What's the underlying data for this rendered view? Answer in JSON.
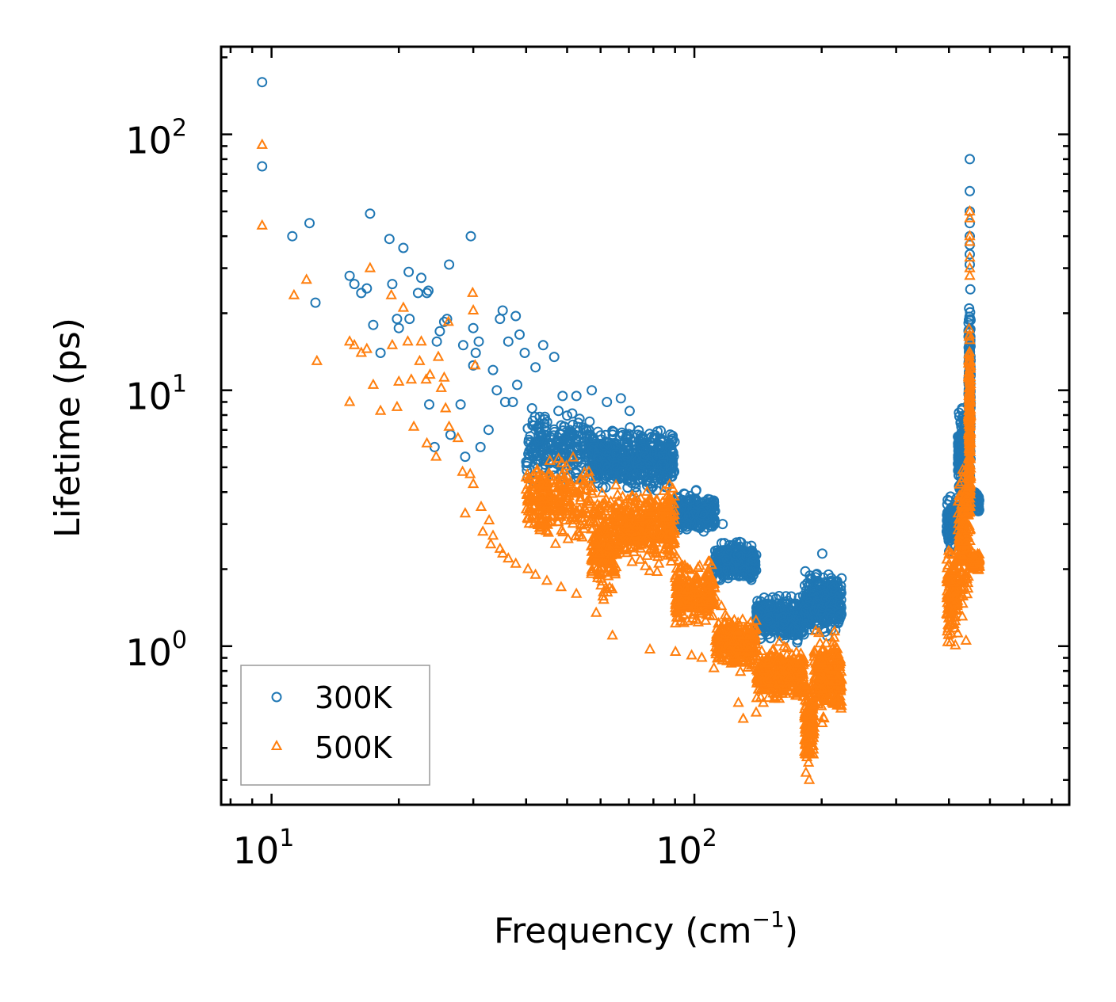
{
  "chart_data": {
    "type": "scatter",
    "title": "",
    "xlabel": "Frequency (cm",
    "xlabel_sup": "−1",
    "xlabel_end": ")",
    "ylabel": "Lifetime (ps)",
    "xscale": "log",
    "yscale": "log",
    "xlim": [
      7.6,
      770
    ],
    "ylim": [
      0.24,
      220
    ],
    "x_ticks": [
      {
        "value": 10,
        "base": "10",
        "exp": "1"
      },
      {
        "value": 100,
        "base": "10",
        "exp": "2"
      }
    ],
    "y_ticks": [
      {
        "value": 1,
        "base": "10",
        "exp": "0"
      },
      {
        "value": 10,
        "base": "10",
        "exp": "1"
      },
      {
        "value": 100,
        "base": "10",
        "exp": "2"
      }
    ],
    "legend_position": "lower-left",
    "series": [
      {
        "name": "300K",
        "marker": "circle",
        "color": "#1f77b4",
        "points": [
          [
            9.5,
            160
          ],
          [
            9.5,
            75
          ],
          [
            11.2,
            40
          ],
          [
            12.3,
            45
          ],
          [
            12.7,
            22
          ],
          [
            15.3,
            28
          ],
          [
            15.7,
            26
          ],
          [
            16.3,
            24
          ],
          [
            16.8,
            25
          ],
          [
            17.1,
            49
          ],
          [
            17.4,
            18
          ],
          [
            18.1,
            14
          ],
          [
            19.0,
            39
          ],
          [
            19.3,
            26
          ],
          [
            19.8,
            19
          ],
          [
            20.0,
            17.5
          ],
          [
            20.5,
            36
          ],
          [
            21.1,
            29
          ],
          [
            21.2,
            19
          ],
          [
            22.2,
            24
          ],
          [
            22.6,
            27.5
          ],
          [
            23.3,
            24
          ],
          [
            23.5,
            24.5
          ],
          [
            23.6,
            8.8
          ],
          [
            24.3,
            6
          ],
          [
            24.6,
            15.5
          ],
          [
            25.0,
            17
          ],
          [
            25.6,
            18.5
          ],
          [
            26.0,
            19
          ],
          [
            26.3,
            31
          ],
          [
            26.5,
            6.7
          ],
          [
            28.0,
            8.8
          ],
          [
            28.4,
            15
          ],
          [
            28.7,
            5.5
          ],
          [
            29.6,
            40
          ],
          [
            30.0,
            17.5
          ],
          [
            30.0,
            12.5
          ],
          [
            30.4,
            14
          ],
          [
            30.9,
            15.5
          ],
          [
            31.2,
            6
          ],
          [
            32.6,
            7
          ],
          [
            33.4,
            12
          ],
          [
            34.1,
            10
          ],
          [
            34.7,
            19
          ],
          [
            35.2,
            20.5
          ],
          [
            35.7,
            9
          ],
          [
            36.3,
            15.5
          ],
          [
            37.2,
            9
          ],
          [
            37.8,
            19.5
          ],
          [
            38.1,
            10.5
          ],
          [
            38.6,
            16.5
          ],
          [
            39.7,
            14
          ],
          [
            41.3,
            8.5
          ],
          [
            42.1,
            12.3
          ],
          [
            43.9,
            15
          ],
          [
            46.6,
            13.5
          ],
          [
            48.8,
            9.5
          ],
          [
            52.6,
            9.5
          ],
          [
            57.2,
            10
          ],
          [
            62.1,
            9
          ],
          [
            67.0,
            9.3
          ],
          [
            70.3,
            8.3
          ],
          [
            104.6,
            3.3
          ],
          [
            111.7,
            3.0
          ],
          [
            116.6,
            3.0
          ],
          [
            200.6,
            2.3
          ],
          [
            213.7,
            1.7
          ],
          [
            448,
            80
          ],
          [
            448,
            60
          ],
          [
            448,
            50
          ],
          [
            448,
            45
          ],
          [
            448,
            40
          ],
          [
            448,
            37
          ],
          [
            448,
            34
          ],
          [
            448,
            31
          ]
        ],
        "dense_regions": [
          {
            "x_range": [
              40,
              57
            ],
            "band": [
              4.0,
              9.0
            ],
            "count": 220
          },
          {
            "x_range": [
              57,
              90
            ],
            "band": [
              3.8,
              7.5
            ],
            "count": 520
          },
          {
            "x_range": [
              90,
              112
            ],
            "band": [
              2.6,
              4.2
            ],
            "count": 220
          },
          {
            "x_range": [
              112,
              140
            ],
            "band": [
              1.7,
              2.7
            ],
            "count": 260
          },
          {
            "x_range": [
              140,
              182
            ],
            "band": [
              1.0,
              1.65
            ],
            "count": 380
          },
          {
            "x_range": [
              182,
              223
            ],
            "band": [
              1.05,
              2.1
            ],
            "count": 300
          },
          {
            "x_range": [
              395,
              420
            ],
            "band": [
              2.2,
              4.0
            ],
            "count": 140
          },
          {
            "x_range": [
              420,
              445
            ],
            "band": [
              3.0,
              10.0
            ],
            "count": 160
          },
          {
            "x_range": [
              445,
              450
            ],
            "band": [
              4.0,
              30.0
            ],
            "count": 180
          },
          {
            "x_range": [
              450,
              472
            ],
            "band": [
              3.2,
              4.2
            ],
            "count": 110
          }
        ]
      },
      {
        "name": "500K",
        "marker": "triangle",
        "color": "#ff7f0e",
        "points": [
          [
            9.5,
            91
          ],
          [
            9.5,
            44
          ],
          [
            11.3,
            23.5
          ],
          [
            12.1,
            27
          ],
          [
            12.8,
            13
          ],
          [
            15.3,
            9
          ],
          [
            15.3,
            15.5
          ],
          [
            15.7,
            15
          ],
          [
            16.3,
            14
          ],
          [
            16.8,
            14.5
          ],
          [
            17.1,
            30
          ],
          [
            17.4,
            10.5
          ],
          [
            18.1,
            8.3
          ],
          [
            19.2,
            23.5
          ],
          [
            19.3,
            15
          ],
          [
            19.8,
            8.6
          ],
          [
            20.0,
            10.8
          ],
          [
            20.5,
            21
          ],
          [
            21.0,
            15.5
          ],
          [
            21.4,
            11
          ],
          [
            21.7,
            7.2
          ],
          [
            22.4,
            13
          ],
          [
            22.6,
            15.5
          ],
          [
            23.2,
            11
          ],
          [
            23.3,
            6.2
          ],
          [
            23.7,
            11.5
          ],
          [
            24.5,
            5.5
          ],
          [
            24.8,
            13.5
          ],
          [
            25.2,
            10.2
          ],
          [
            25.6,
            11.2
          ],
          [
            25.8,
            8.5
          ],
          [
            26.2,
            18.5
          ],
          [
            26.3,
            7.2
          ],
          [
            27.6,
            6.5
          ],
          [
            28.3,
            4.8
          ],
          [
            28.7,
            3.3
          ],
          [
            29.5,
            4.7
          ],
          [
            29.9,
            24
          ],
          [
            30.0,
            20.5
          ],
          [
            30.0,
            4.3
          ],
          [
            30.3,
            12.5
          ],
          [
            31.3,
            3.5
          ],
          [
            31.6,
            2.8
          ],
          [
            32.7,
            3.1
          ],
          [
            33.0,
            2.5
          ],
          [
            33.4,
            2.7
          ],
          [
            34.7,
            2.4
          ],
          [
            35.2,
            2.3
          ],
          [
            36.3,
            2.2
          ],
          [
            37.8,
            2.1
          ],
          [
            40.4,
            2.0
          ],
          [
            42.1,
            1.9
          ],
          [
            44.8,
            1.8
          ],
          [
            48.4,
            1.7
          ],
          [
            52.6,
            1.6
          ],
          [
            58.6,
            1.35
          ],
          [
            64.0,
            1.1
          ],
          [
            78.5,
            0.97
          ],
          [
            90.2,
            0.95
          ],
          [
            98.5,
            0.92
          ],
          [
            104.1,
            0.9
          ],
          [
            111.2,
            0.82
          ],
          [
            127.1,
            0.6
          ],
          [
            130.5,
            0.52
          ],
          [
            140.0,
            0.55
          ],
          [
            145.5,
            0.6
          ],
          [
            183.6,
            0.32
          ],
          [
            186.9,
            0.3
          ],
          [
            200.6,
            0.5
          ],
          [
            448,
            50
          ],
          [
            448,
            47
          ],
          [
            448,
            40
          ],
          [
            448,
            38
          ],
          [
            448,
            33
          ],
          [
            448,
            30
          ],
          [
            448,
            28
          ],
          [
            439,
            1.05
          ]
        ],
        "dense_regions": [
          {
            "x_range": [
              40,
              57
            ],
            "band": [
              2.3,
              5.8
            ],
            "count": 260
          },
          {
            "x_range": [
              57,
              65
            ],
            "band": [
              1.4,
              4.5
            ],
            "count": 200
          },
          {
            "x_range": [
              65,
              90
            ],
            "band": [
              1.9,
              4.5
            ],
            "count": 360
          },
          {
            "x_range": [
              90,
              112
            ],
            "band": [
              1.1,
              2.3
            ],
            "count": 240
          },
          {
            "x_range": [
              112,
              140
            ],
            "band": [
              0.75,
              1.45
            ],
            "count": 260
          },
          {
            "x_range": [
              140,
              182
            ],
            "band": [
              0.58,
              1.05
            ],
            "count": 340
          },
          {
            "x_range": [
              182,
              192
            ],
            "band": [
              0.32,
              0.8
            ],
            "count": 140
          },
          {
            "x_range": [
              192,
              223
            ],
            "band": [
              0.48,
              1.2
            ],
            "count": 260
          },
          {
            "x_range": [
              395,
              420
            ],
            "band": [
              0.9,
              2.6
            ],
            "count": 120
          },
          {
            "x_range": [
              420,
              445
            ],
            "band": [
              1.2,
              6.0
            ],
            "count": 140
          },
          {
            "x_range": [
              445,
              450
            ],
            "band": [
              2.0,
              22.0
            ],
            "count": 180
          },
          {
            "x_range": [
              450,
              472
            ],
            "band": [
              1.9,
              2.4
            ],
            "count": 90
          }
        ]
      }
    ]
  }
}
